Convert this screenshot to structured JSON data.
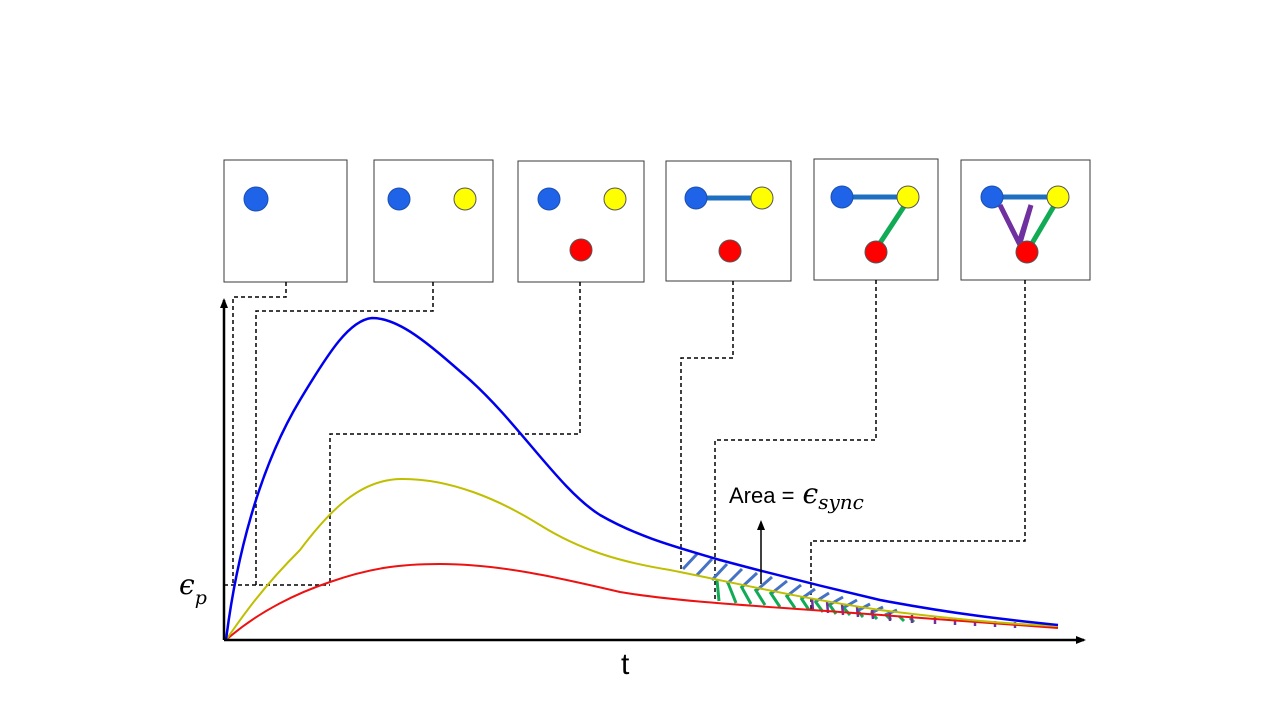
{
  "colors": {
    "blue": "#0000ee",
    "olive": "#bfbf00",
    "red": "#ee1111",
    "node_blue": "#1f63e8",
    "node_yellow": "#ffff00",
    "node_red": "#ff0000",
    "edge_blue": "#1f6fc0",
    "edge_green": "#11aa55",
    "edge_purple": "#7030a0",
    "hatch_blue": "#4472c4",
    "hatch_green": "#11aa55"
  },
  "panels": [
    {
      "nodes": [
        "blue"
      ],
      "edges": []
    },
    {
      "nodes": [
        "blue",
        "yellow"
      ],
      "edges": []
    },
    {
      "nodes": [
        "blue",
        "yellow",
        "red"
      ],
      "edges": []
    },
    {
      "nodes": [
        "blue",
        "yellow",
        "red"
      ],
      "edges": [
        "blue-yellow"
      ]
    },
    {
      "nodes": [
        "blue",
        "yellow",
        "red"
      ],
      "edges": [
        "blue-yellow",
        "yellow-red"
      ]
    },
    {
      "nodes": [
        "blue",
        "yellow",
        "red"
      ],
      "edges": [
        "blue-yellow",
        "yellow-red",
        "blue-red"
      ]
    }
  ],
  "labels": {
    "y_axis_symbol": "ϵ",
    "y_axis_subscript": "p",
    "x_axis": "t",
    "area_prefix": "Area = ",
    "area_symbol": "ϵ",
    "area_subscript": "sync"
  }
}
